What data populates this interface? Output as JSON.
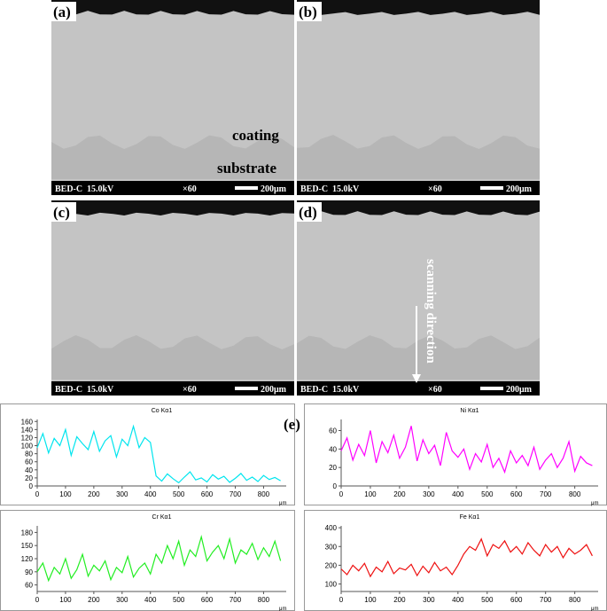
{
  "panels": [
    {
      "label": "(a)"
    },
    {
      "label": "(b)"
    },
    {
      "label": "(c)"
    },
    {
      "label": "(d)"
    }
  ],
  "info_bar": {
    "mode": "BED-C",
    "voltage": "15.0kV",
    "magnification": "×60",
    "scale": "200μm"
  },
  "annotations": {
    "coating": "coating",
    "substrate": "substrate",
    "scan": "scanning direction"
  },
  "panel_e_label": "(e)",
  "chart_data": [
    {
      "type": "line",
      "title": "Co Kα1",
      "color": "#00e5ee",
      "x_unit": "μm",
      "x": [
        0,
        20,
        40,
        60,
        80,
        100,
        120,
        140,
        160,
        180,
        200,
        220,
        240,
        260,
        280,
        300,
        320,
        340,
        360,
        380,
        400,
        420,
        440,
        460,
        480,
        500,
        520,
        540,
        560,
        580,
        600,
        620,
        640,
        660,
        680,
        700,
        720,
        740,
        760,
        780,
        800,
        820,
        840,
        860
      ],
      "values": [
        95,
        130,
        82,
        118,
        100,
        140,
        76,
        122,
        105,
        90,
        135,
        86,
        112,
        125,
        72,
        116,
        100,
        148,
        95,
        120,
        108,
        25,
        12,
        30,
        18,
        8,
        22,
        35,
        15,
        20,
        10,
        28,
        17,
        24,
        9,
        19,
        31,
        14,
        22,
        11,
        26,
        16,
        21,
        13
      ],
      "xlim": [
        0,
        880
      ],
      "xticks": [
        0,
        100,
        200,
        300,
        400,
        500,
        600,
        700,
        800
      ],
      "ylim": [
        0,
        165
      ],
      "yticks": [
        0,
        20,
        40,
        60,
        80,
        100,
        120,
        140,
        160
      ]
    },
    {
      "type": "line",
      "title": "Ni Kα1",
      "color": "#ff00ff",
      "x_unit": "μm",
      "x": [
        0,
        20,
        40,
        60,
        80,
        100,
        120,
        140,
        160,
        180,
        200,
        220,
        240,
        260,
        280,
        300,
        320,
        340,
        360,
        380,
        400,
        420,
        440,
        460,
        480,
        500,
        520,
        540,
        560,
        580,
        600,
        620,
        640,
        660,
        680,
        700,
        720,
        740,
        760,
        780,
        800,
        820,
        840,
        860
      ],
      "values": [
        38,
        52,
        28,
        45,
        33,
        60,
        25,
        48,
        36,
        55,
        30,
        42,
        65,
        27,
        50,
        35,
        44,
        22,
        58,
        38,
        31,
        40,
        18,
        35,
        26,
        45,
        20,
        30,
        15,
        38,
        25,
        33,
        22,
        42,
        18,
        28,
        35,
        20,
        30,
        48,
        16,
        32,
        25,
        22
      ],
      "xlim": [
        0,
        880
      ],
      "xticks": [
        0,
        100,
        200,
        300,
        400,
        500,
        600,
        700,
        800
      ],
      "ylim": [
        0,
        72
      ],
      "yticks": [
        0,
        20,
        40,
        60
      ]
    },
    {
      "type": "line",
      "title": "Cr Kα1",
      "color": "#22ee22",
      "x_unit": "μm",
      "x": [
        0,
        20,
        40,
        60,
        80,
        100,
        120,
        140,
        160,
        180,
        200,
        220,
        240,
        260,
        280,
        300,
        320,
        340,
        360,
        380,
        400,
        420,
        440,
        460,
        480,
        500,
        520,
        540,
        560,
        580,
        600,
        620,
        640,
        660,
        680,
        700,
        720,
        740,
        760,
        780,
        800,
        820,
        840,
        860
      ],
      "values": [
        90,
        110,
        70,
        100,
        85,
        120,
        75,
        95,
        130,
        80,
        105,
        92,
        115,
        72,
        100,
        88,
        125,
        78,
        98,
        110,
        85,
        130,
        110,
        150,
        120,
        160,
        105,
        140,
        125,
        170,
        115,
        135,
        150,
        120,
        165,
        110,
        140,
        130,
        155,
        118,
        145,
        125,
        160,
        115
      ],
      "xlim": [
        0,
        880
      ],
      "xticks": [
        0,
        100,
        200,
        300,
        400,
        500,
        600,
        700,
        800
      ],
      "ylim": [
        45,
        195
      ],
      "yticks": [
        60,
        90,
        120,
        150,
        180
      ]
    },
    {
      "type": "line",
      "title": "Fe Kα1",
      "color": "#ee1111",
      "x_unit": "μm",
      "x": [
        0,
        20,
        40,
        60,
        80,
        100,
        120,
        140,
        160,
        180,
        200,
        220,
        240,
        260,
        280,
        300,
        320,
        340,
        360,
        380,
        400,
        420,
        440,
        460,
        480,
        500,
        520,
        540,
        560,
        580,
        600,
        620,
        640,
        660,
        680,
        700,
        720,
        740,
        760,
        780,
        800,
        820,
        840,
        860
      ],
      "values": [
        180,
        150,
        200,
        170,
        210,
        140,
        190,
        165,
        220,
        155,
        185,
        175,
        205,
        145,
        195,
        160,
        215,
        170,
        190,
        150,
        200,
        260,
        300,
        280,
        340,
        250,
        310,
        290,
        330,
        270,
        300,
        260,
        320,
        280,
        250,
        310,
        270,
        300,
        240,
        290,
        260,
        280,
        310,
        250
      ],
      "xlim": [
        0,
        880
      ],
      "xticks": [
        0,
        100,
        200,
        300,
        400,
        500,
        600,
        700,
        800
      ],
      "ylim": [
        60,
        410
      ],
      "yticks": [
        100,
        200,
        300,
        400
      ]
    }
  ]
}
